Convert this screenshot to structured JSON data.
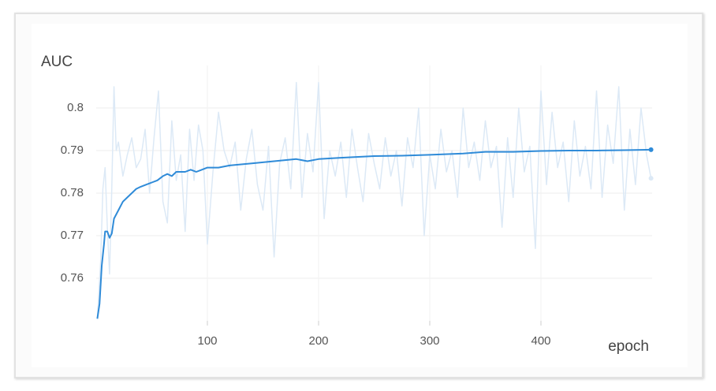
{
  "chart_data": {
    "type": "line",
    "y_label": "AUC",
    "x_label": "epoch",
    "xlim": [
      0,
      500
    ],
    "ylim": [
      0.75,
      0.81
    ],
    "xticks": [
      100,
      200,
      300,
      400
    ],
    "yticks": [
      0.76,
      0.77,
      0.78,
      0.79,
      0.8
    ],
    "grid": true,
    "series": [
      {
        "color": "#dce9f6",
        "x": [
          1,
          4,
          6,
          8,
          10,
          12,
          14,
          16,
          18,
          20,
          24,
          28,
          32,
          36,
          40,
          44,
          48,
          52,
          56,
          60,
          64,
          68,
          72,
          76,
          80,
          84,
          88,
          92,
          96,
          100,
          105,
          110,
          115,
          120,
          125,
          130,
          135,
          140,
          145,
          150,
          155,
          160,
          165,
          170,
          175,
          180,
          185,
          190,
          195,
          200,
          205,
          210,
          215,
          220,
          225,
          230,
          235,
          240,
          245,
          250,
          255,
          260,
          265,
          270,
          275,
          280,
          285,
          290,
          295,
          300,
          305,
          310,
          315,
          320,
          325,
          330,
          335,
          340,
          345,
          350,
          355,
          360,
          365,
          370,
          375,
          380,
          385,
          390,
          395,
          400,
          405,
          410,
          415,
          420,
          425,
          430,
          435,
          440,
          445,
          450,
          455,
          460,
          465,
          470,
          475,
          480,
          485,
          490,
          495,
          499
        ],
        "values": [
          0.7505,
          0.764,
          0.781,
          0.786,
          0.772,
          0.761,
          0.781,
          0.805,
          0.79,
          0.792,
          0.784,
          0.789,
          0.793,
          0.786,
          0.788,
          0.795,
          0.78,
          0.793,
          0.804,
          0.778,
          0.773,
          0.797,
          0.783,
          0.789,
          0.771,
          0.795,
          0.783,
          0.796,
          0.79,
          0.768,
          0.785,
          0.799,
          0.79,
          0.786,
          0.792,
          0.776,
          0.788,
          0.795,
          0.782,
          0.776,
          0.791,
          0.765,
          0.787,
          0.793,
          0.781,
          0.806,
          0.779,
          0.794,
          0.785,
          0.806,
          0.774,
          0.79,
          0.784,
          0.792,
          0.779,
          0.795,
          0.786,
          0.778,
          0.794,
          0.787,
          0.781,
          0.793,
          0.784,
          0.79,
          0.777,
          0.793,
          0.786,
          0.8,
          0.77,
          0.789,
          0.781,
          0.795,
          0.785,
          0.79,
          0.779,
          0.8,
          0.786,
          0.792,
          0.783,
          0.797,
          0.786,
          0.791,
          0.772,
          0.793,
          0.779,
          0.8,
          0.785,
          0.791,
          0.767,
          0.804,
          0.782,
          0.799,
          0.786,
          0.792,
          0.778,
          0.797,
          0.784,
          0.791,
          0.781,
          0.804,
          0.779,
          0.796,
          0.787,
          0.805,
          0.776,
          0.795,
          0.782,
          0.8,
          0.789,
          0.7835
        ]
      },
      {
        "color": "#2f8bd8",
        "x": [
          1,
          3,
          5,
          7,
          8,
          10,
          12,
          14,
          16,
          18,
          20,
          24,
          28,
          32,
          36,
          40,
          45,
          50,
          55,
          60,
          64,
          68,
          72,
          80,
          85,
          90,
          100,
          110,
          120,
          140,
          160,
          180,
          190,
          200,
          220,
          250,
          275,
          300,
          330,
          350,
          375,
          400,
          425,
          450,
          475,
          499
        ],
        "values": [
          0.7505,
          0.754,
          0.763,
          0.768,
          0.771,
          0.771,
          0.7695,
          0.7705,
          0.774,
          0.775,
          0.776,
          0.778,
          0.779,
          0.78,
          0.781,
          0.7815,
          0.782,
          0.7825,
          0.783,
          0.784,
          0.7845,
          0.784,
          0.785,
          0.785,
          0.7855,
          0.785,
          0.786,
          0.786,
          0.7865,
          0.787,
          0.7875,
          0.788,
          0.7875,
          0.788,
          0.7883,
          0.7887,
          0.7888,
          0.789,
          0.7893,
          0.7897,
          0.7897,
          0.7899,
          0.79,
          0.79,
          0.7901,
          0.7902
        ]
      }
    ]
  }
}
